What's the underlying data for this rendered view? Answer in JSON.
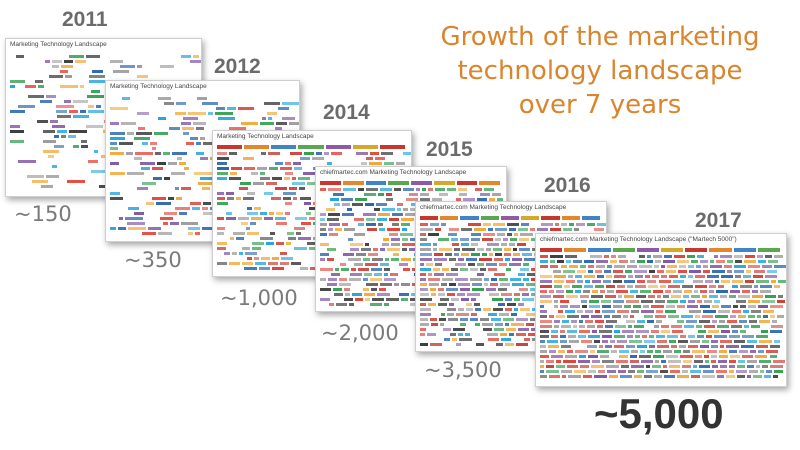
{
  "title": {
    "lines": [
      "Growth of the marketing",
      "technology landscape",
      "over 7 years"
    ]
  },
  "landscapes": [
    {
      "year": "2011",
      "count": "~150",
      "thumbnail_title": "Marketing Technology Landscape"
    },
    {
      "year": "2012",
      "count": "~350",
      "thumbnail_title": "Marketing Technology Landscape"
    },
    {
      "year": "2014",
      "count": "~1,000",
      "thumbnail_title": "Marketing Technology Landscape"
    },
    {
      "year": "2015",
      "count": "~2,000",
      "thumbnail_title": "chiefmartec.com Marketing Technology Landscape"
    },
    {
      "year": "2016",
      "count": "~3,500",
      "thumbnail_title": "chiefmartec.com Marketing Technology Landscape"
    },
    {
      "year": "2017",
      "count": "~5,000",
      "thumbnail_title": "chiefmartec.com Marketing Technology Landscape (\"Martech 5000\")"
    }
  ]
}
